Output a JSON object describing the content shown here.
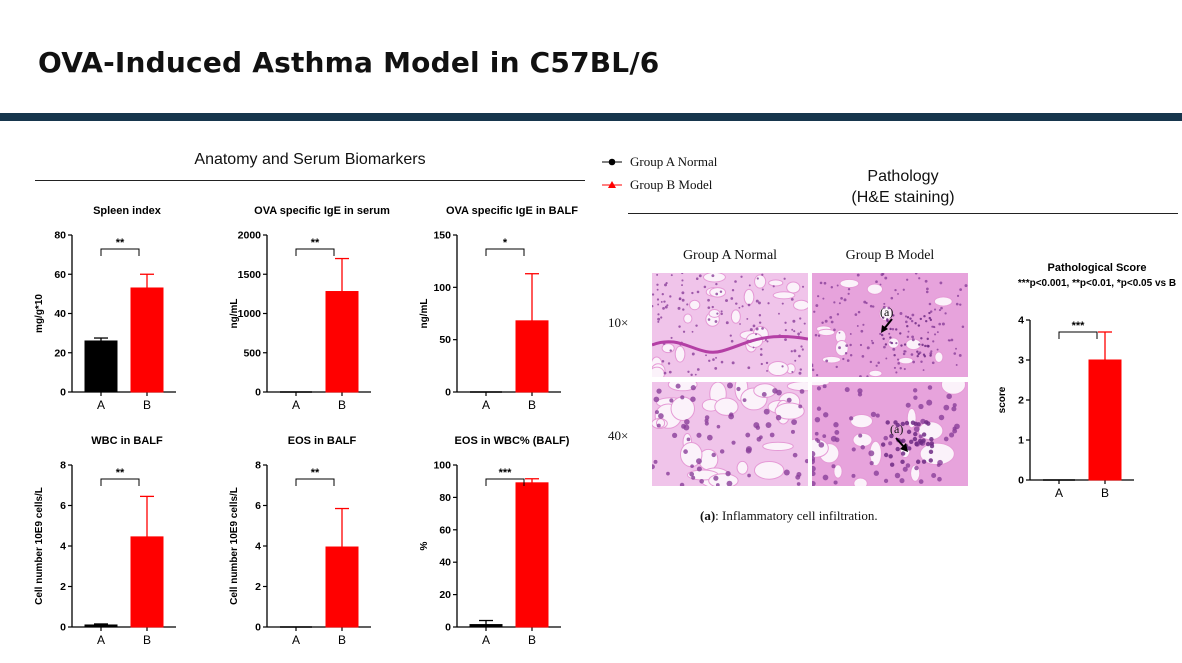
{
  "page_title": "OVA-Induced Asthma Model in C57BL/6",
  "left_section": {
    "heading": "Anatomy and Serum Biomarkers"
  },
  "legend": {
    "items": [
      {
        "label": "Group A Normal",
        "marker": "circle",
        "color": "#000000"
      },
      {
        "label": "Group B Model",
        "marker": "triangle",
        "color": "#ff0000"
      }
    ]
  },
  "right_section": {
    "heading": "Pathology",
    "subheading": "(H&E staining)"
  },
  "histology": {
    "columns": [
      "Group A Normal",
      "Group B Model"
    ],
    "rows": [
      "10×",
      "40×"
    ],
    "annotation": "(a)",
    "footnote_key": "(a)",
    "footnote_text": ": Inflammatory cell infiltration."
  },
  "colors": {
    "group_a": "#000000",
    "group_b": "#ff0000",
    "title_bar": "#17364d",
    "stain_pink": "#e59ad6",
    "stain_purple": "#8a3f9a"
  },
  "chart_data": [
    {
      "type": "bar",
      "title": "Spleen index",
      "ylabel": "mg/g*10",
      "categories": [
        "A",
        "B"
      ],
      "values": [
        26,
        53
      ],
      "errors": [
        1.5,
        7
      ],
      "ylim": [
        0,
        80
      ],
      "yticks": [
        "0",
        "20",
        "40",
        "60",
        "80"
      ],
      "significance": "**"
    },
    {
      "type": "bar",
      "title": "OVA specific IgE in serum",
      "ylabel": "ng/mL",
      "categories": [
        "A",
        "B"
      ],
      "values": [
        0,
        1280
      ],
      "errors": [
        0,
        420
      ],
      "ylim": [
        0,
        2000
      ],
      "yticks": [
        "0",
        "500",
        "1000",
        "1500",
        "2000"
      ],
      "significance": "**"
    },
    {
      "type": "bar",
      "title": "OVA specific IgE in BALF",
      "ylabel": "ng/mL",
      "categories": [
        "A",
        "B"
      ],
      "values": [
        0,
        68
      ],
      "errors": [
        0,
        45
      ],
      "ylim": [
        0,
        150
      ],
      "yticks": [
        "0",
        "50",
        "100",
        "150"
      ],
      "significance": "*"
    },
    {
      "type": "bar",
      "title": "WBC in BALF",
      "ylabel": "Cell number 10E9 cells/L",
      "categories": [
        "A",
        "B"
      ],
      "values": [
        0.1,
        4.45
      ],
      "errors": [
        0.05,
        2.0
      ],
      "ylim": [
        0,
        8
      ],
      "yticks": [
        "0",
        "2",
        "4",
        "6",
        "8"
      ],
      "significance": "**"
    },
    {
      "type": "bar",
      "title": "EOS in BALF",
      "ylabel": "Cell number 10E9 cells/L",
      "categories": [
        "A",
        "B"
      ],
      "values": [
        0,
        3.95
      ],
      "errors": [
        0,
        1.9
      ],
      "ylim": [
        0,
        8
      ],
      "yticks": [
        "0",
        "2",
        "4",
        "6",
        "8"
      ],
      "significance": "**"
    },
    {
      "type": "bar",
      "title": "EOS in WBC% (BALF)",
      "ylabel": "%",
      "categories": [
        "A",
        "B"
      ],
      "values": [
        1.5,
        89
      ],
      "errors": [
        2.5,
        2.5
      ],
      "ylim": [
        0,
        100
      ],
      "yticks": [
        "0",
        "20",
        "40",
        "60",
        "80",
        "100"
      ],
      "significance": "***"
    },
    {
      "type": "bar",
      "title": "Pathological Score",
      "subtitle": "***p<0.001, **p<0.01, *p<0.05 vs B",
      "ylabel": "score",
      "categories": [
        "A",
        "B"
      ],
      "values": [
        0,
        3
      ],
      "errors": [
        0,
        0.7
      ],
      "ylim": [
        0,
        4
      ],
      "yticks": [
        "0",
        "1",
        "2",
        "3",
        "4"
      ],
      "significance": "***"
    }
  ]
}
